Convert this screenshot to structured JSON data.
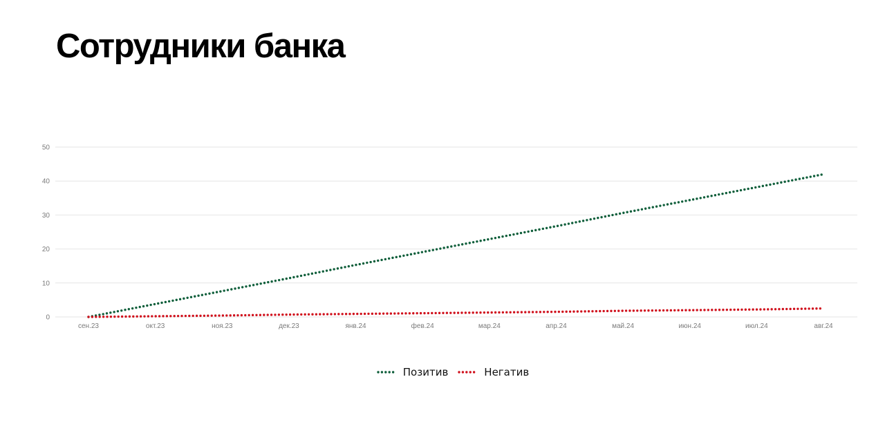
{
  "title": "Сотрудники банка",
  "colors": {
    "positive": "#0e5e3a",
    "negative": "#d0101c",
    "grid": "#e6e6e6",
    "tick": "#7a7a7a"
  },
  "chart_data": {
    "type": "line",
    "categories": [
      "сен.23",
      "окт.23",
      "ноя.23",
      "дек.23",
      "янв.24",
      "фев.24",
      "мар.24",
      "апр.24",
      "май.24",
      "июн.24",
      "июл.24",
      "авг.24"
    ],
    "y_ticks": [
      "0",
      "10",
      "20",
      "30",
      "40",
      "50"
    ],
    "ylim": [
      0,
      50
    ],
    "grid": true,
    "legend_position": "bottom-center",
    "line_style": "dotted",
    "series": [
      {
        "name": "Позитив",
        "values": [
          0,
          3.8,
          7.6,
          11.4,
          15.3,
          19.1,
          22.9,
          26.7,
          30.6,
          34.4,
          38.2,
          42
        ]
      },
      {
        "name": "Негатив",
        "values": [
          0,
          0.2,
          0.4,
          0.7,
          0.9,
          1.1,
          1.3,
          1.5,
          1.8,
          2.0,
          2.2,
          2.5
        ]
      }
    ]
  }
}
